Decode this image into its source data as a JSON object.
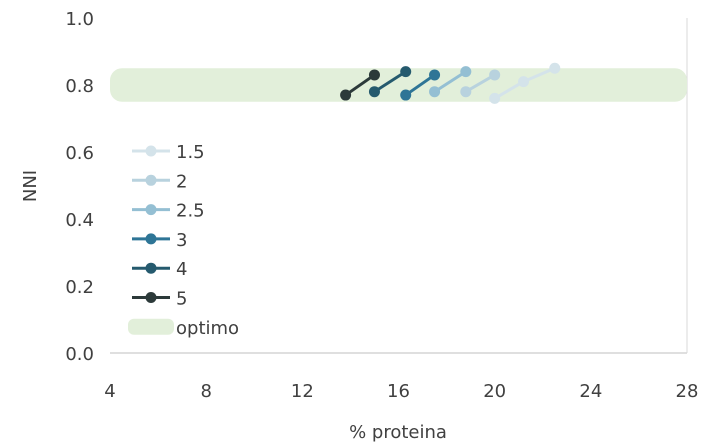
{
  "chart_data": {
    "type": "line",
    "title": "",
    "xlabel": "% proteina",
    "ylabel": "NNI",
    "xlim": [
      4,
      28
    ],
    "ylim": [
      0.0,
      1.0
    ],
    "xticks": [
      "4",
      "8",
      "12",
      "16",
      "20",
      "24",
      "28"
    ],
    "yticks": [
      "0.0",
      "0.2",
      "0.4",
      "0.6",
      "0.8",
      "1.0"
    ],
    "optimum_band": {
      "name": "optimo",
      "y_range": [
        0.75,
        0.85
      ],
      "color": "#e2efda"
    },
    "legend_position": "left",
    "series": [
      {
        "name": "1.5",
        "color": "#d4e3ea",
        "x": [
          20.0,
          21.2,
          22.5
        ],
        "y": [
          0.76,
          0.81,
          0.85
        ]
      },
      {
        "name": "2",
        "color": "#b8d2de",
        "x": [
          18.8,
          20.0
        ],
        "y": [
          0.78,
          0.83
        ]
      },
      {
        "name": "2.5",
        "color": "#94bfd3",
        "x": [
          17.5,
          18.8
        ],
        "y": [
          0.78,
          0.84
        ]
      },
      {
        "name": "3",
        "color": "#2e7596",
        "x": [
          16.3,
          17.5
        ],
        "y": [
          0.77,
          0.83
        ]
      },
      {
        "name": "4",
        "color": "#255a6e",
        "x": [
          15.0,
          16.3
        ],
        "y": [
          0.78,
          0.84
        ]
      },
      {
        "name": "5",
        "color": "#2c3a3a",
        "x": [
          13.8,
          15.0
        ],
        "y": [
          0.77,
          0.83
        ]
      }
    ]
  }
}
